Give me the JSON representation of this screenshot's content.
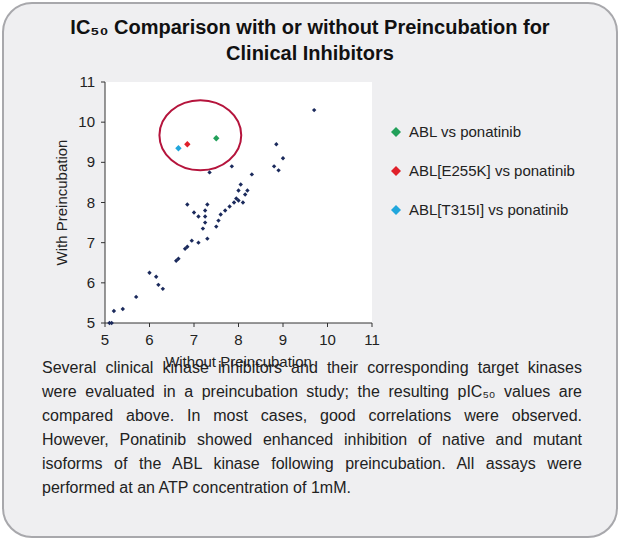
{
  "chart_data": {
    "type": "scatter",
    "title": "IC₅₀ Comparison with or without Preincubation for Clinical Inhibitors",
    "xlabel": "Without Preincubation",
    "ylabel": "With Preincubation",
    "caption": "Several clinical kinase inhibitors and their corresponding target kinases were evaluated in a preincubation study; the resulting pIC₅₀ values are compared above. In most cases, good correlations were observed. However, Ponatinib showed enhanced inhibition of native and mutant isoforms of the ABL kinase following preincubation. All assays were performed at an ATP concentration of 1mM.",
    "xlim": [
      5,
      11
    ],
    "ylim": [
      5,
      11
    ],
    "xticks": [
      5,
      6,
      7,
      8,
      9,
      10,
      11
    ],
    "yticks": [
      5,
      6,
      7,
      8,
      9,
      10,
      11
    ],
    "grid": false,
    "legend": "right",
    "marker": "diamond",
    "series": [
      {
        "color": "#1b2a5c",
        "x": [
          5.1,
          5.15,
          5.2,
          5.4,
          5.7,
          6.0,
          6.15,
          6.2,
          6.3,
          6.6,
          6.65,
          6.8,
          6.85,
          6.95,
          7.1,
          7.2,
          7.25,
          7.3,
          7.25,
          7.3,
          7.35,
          6.85,
          7.0,
          7.1,
          7.25,
          7.5,
          7.55,
          7.6,
          7.7,
          7.8,
          7.9,
          7.95,
          8.0,
          8.05,
          8.1,
          8.15,
          8.2,
          8.0,
          7.85,
          8.3,
          8.8,
          8.85,
          8.9,
          9.0,
          9.7
        ],
        "values": [
          5.0,
          5.0,
          5.3,
          5.35,
          5.65,
          6.25,
          6.15,
          5.95,
          5.85,
          6.55,
          6.6,
          6.85,
          6.9,
          7.05,
          7.0,
          7.35,
          7.5,
          7.1,
          7.65,
          7.95,
          8.75,
          7.95,
          7.75,
          7.65,
          7.8,
          7.4,
          7.55,
          7.7,
          7.8,
          7.9,
          8.0,
          8.1,
          8.3,
          8.45,
          8.0,
          8.2,
          8.3,
          8.05,
          8.9,
          8.7,
          8.9,
          9.45,
          8.8,
          9.1,
          10.3
        ]
      },
      {
        "name": "ABL vs ponatinib",
        "color": "#22a05a",
        "x": [
          7.5
        ],
        "values": [
          9.6
        ]
      },
      {
        "name": "ABL[E255K] vs ponatinib",
        "color": "#e0202a",
        "x": [
          6.85
        ],
        "values": [
          9.45
        ]
      },
      {
        "name": "ABL[T315I] vs ponatinib",
        "color": "#21a6dc",
        "x": [
          6.65
        ],
        "values": [
          9.35
        ]
      }
    ]
  }
}
